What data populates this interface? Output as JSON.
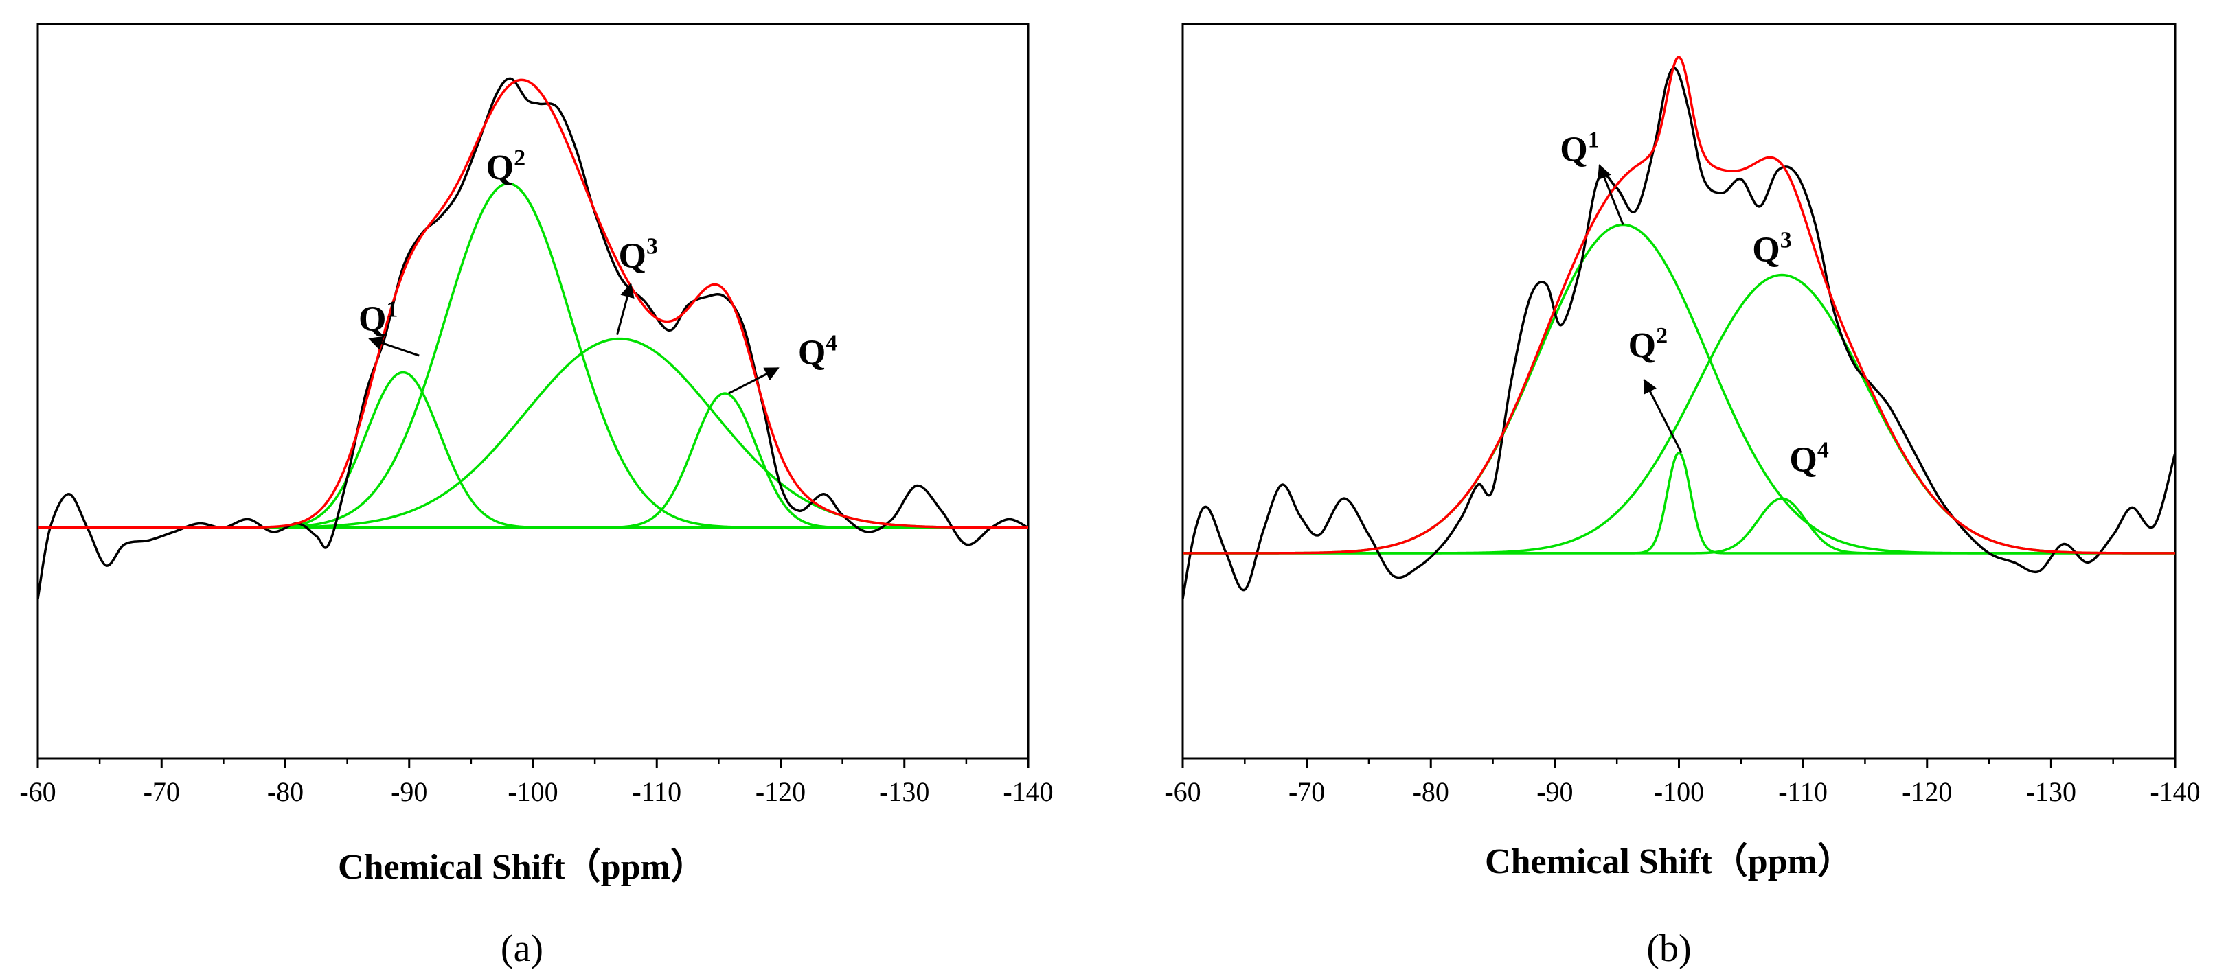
{
  "chart_data": [
    {
      "panel_label": "(a)",
      "type": "line",
      "xlabel": "Chemical Shift（ppm）",
      "ylabel": "",
      "xlim": [
        -60,
        -140
      ],
      "ylim": [
        -0.55,
        1.2
      ],
      "x_ticks": [
        -60,
        -70,
        -80,
        -90,
        -100,
        -110,
        -120,
        -130,
        -140
      ],
      "tick_labels": [
        "-60",
        "-70",
        "-80",
        "-90",
        "-100",
        "-110",
        "-120",
        "-130",
        "-140"
      ],
      "series_colors": {
        "experimental": "#000000",
        "fit": "#ff0000",
        "components": "#00e000"
      },
      "series": [
        {
          "name": "experimental",
          "color": "#000000",
          "x": [
            -60,
            -61,
            -62.5,
            -64,
            -65.5,
            -67,
            -69,
            -71,
            -73,
            -75,
            -77,
            -79,
            -81,
            -82.5,
            -83.5,
            -85,
            -86.5,
            -88,
            -89.5,
            -91,
            -92.5,
            -94,
            -95.5,
            -97,
            -98.2,
            -99.5,
            -100.5,
            -102,
            -103.5,
            -105,
            -107,
            -109,
            -111,
            -112.5,
            -114,
            -115.5,
            -117,
            -118.5,
            -120,
            -121.5,
            -123.5,
            -125,
            -127,
            -129,
            -131,
            -133,
            -135,
            -137,
            -138.5,
            -140
          ],
          "y": [
            -0.17,
            0.0,
            0.08,
            0.0,
            -0.09,
            -0.04,
            -0.03,
            -0.01,
            0.01,
            0.0,
            0.02,
            -0.01,
            0.01,
            -0.02,
            -0.04,
            0.12,
            0.32,
            0.45,
            0.62,
            0.7,
            0.74,
            0.8,
            0.91,
            1.03,
            1.07,
            1.02,
            1.01,
            1.0,
            0.9,
            0.75,
            0.6,
            0.54,
            0.47,
            0.53,
            0.55,
            0.55,
            0.48,
            0.3,
            0.1,
            0.04,
            0.08,
            0.03,
            -0.01,
            0.02,
            0.1,
            0.04,
            -0.04,
            0.0,
            0.02,
            0.0
          ]
        },
        {
          "name": "fit",
          "color": "#ff0000",
          "type": "gauss_sum"
        },
        {
          "name": "Q1",
          "color": "#00e000",
          "type": "gaussian",
          "center": -89.5,
          "amplitude": 0.37,
          "fwhm": 7.0
        },
        {
          "name": "Q2",
          "color": "#00e000",
          "type": "gaussian",
          "center": -98.0,
          "amplitude": 0.82,
          "fwhm": 12.0
        },
        {
          "name": "Q3",
          "color": "#00e000",
          "type": "gaussian",
          "center": -107.0,
          "amplitude": 0.45,
          "fwhm": 18.0
        },
        {
          "name": "Q4",
          "color": "#00e000",
          "type": "gaussian",
          "center": -115.5,
          "amplitude": 0.32,
          "fwhm": 6.0
        }
      ],
      "annotations": [
        {
          "label": "Q",
          "sup": "1",
          "text_x": -87.5,
          "text_y": 0.47,
          "arrow_from": [
            -90.8,
            0.41
          ],
          "arrow_to": [
            -86.8,
            0.45
          ]
        },
        {
          "label": "Q",
          "sup": "2",
          "text_x": -97.8,
          "text_y": 0.83,
          "arrow_from": null,
          "arrow_to": null
        },
        {
          "label": "Q",
          "sup": "3",
          "text_x": -108.5,
          "text_y": 0.62,
          "arrow_from": [
            -106.8,
            0.46
          ],
          "arrow_to": [
            -107.9,
            0.58
          ]
        },
        {
          "label": "Q",
          "sup": "4",
          "text_x": -123.0,
          "text_y": 0.39,
          "arrow_from": [
            -115.8,
            0.32
          ],
          "arrow_to": [
            -119.8,
            0.38
          ]
        }
      ]
    },
    {
      "panel_label": "(b)",
      "type": "line",
      "xlabel": "Chemical Shift（ppm）",
      "ylabel": "",
      "xlim": [
        -60,
        -140
      ],
      "ylim": [
        -0.45,
        1.16
      ],
      "x_ticks": [
        -60,
        -70,
        -80,
        -90,
        -100,
        -110,
        -120,
        -130,
        -140
      ],
      "tick_labels": [
        "-60",
        "-70",
        "-80",
        "-90",
        "-100",
        "-110",
        "-120",
        "-130",
        "-140"
      ],
      "series_colors": {
        "experimental": "#000000",
        "fit": "#ff0000",
        "components": "#00e000"
      },
      "series": [
        {
          "name": "experimental",
          "color": "#000000",
          "x": [
            -60,
            -61,
            -62,
            -63.5,
            -65,
            -66.5,
            -68,
            -69.5,
            -71,
            -73,
            -75,
            -77,
            -79,
            -81,
            -82.5,
            -83.8,
            -85,
            -86.5,
            -88,
            -89.3,
            -90.5,
            -92,
            -93.5,
            -95,
            -96.5,
            -98,
            -99,
            -99.8,
            -100.8,
            -102,
            -103.5,
            -105,
            -106.5,
            -108,
            -109.5,
            -111,
            -112.5,
            -114,
            -115.5,
            -117,
            -119,
            -121,
            -123,
            -125,
            -127,
            -129,
            -131,
            -133,
            -135,
            -136.5,
            -138.3,
            -140
          ],
          "y": [
            -0.1,
            0.05,
            0.1,
            0.0,
            -0.08,
            0.05,
            0.15,
            0.08,
            0.04,
            0.12,
            0.04,
            -0.05,
            -0.03,
            0.02,
            0.08,
            0.15,
            0.14,
            0.38,
            0.56,
            0.59,
            0.5,
            0.62,
            0.82,
            0.8,
            0.75,
            0.89,
            1.03,
            1.06,
            0.97,
            0.82,
            0.79,
            0.82,
            0.76,
            0.84,
            0.83,
            0.72,
            0.53,
            0.42,
            0.37,
            0.32,
            0.22,
            0.12,
            0.05,
            0.0,
            -0.02,
            -0.04,
            0.02,
            -0.02,
            0.04,
            0.1,
            0.06,
            0.22
          ]
        },
        {
          "name": "fit",
          "color": "#ff0000",
          "type": "gauss_sum"
        },
        {
          "name": "Q1",
          "color": "#00e000",
          "type": "gaussian",
          "center": -95.5,
          "amplitude": 0.72,
          "fwhm": 16.0
        },
        {
          "name": "Q2",
          "color": "#00e000",
          "type": "gaussian",
          "center": -100.0,
          "amplitude": 0.22,
          "fwhm": 2.2
        },
        {
          "name": "Q3",
          "color": "#00e000",
          "type": "gaussian",
          "center": -108.3,
          "amplitude": 0.61,
          "fwhm": 16.0
        },
        {
          "name": "Q4",
          "color": "#00e000",
          "type": "gaussian",
          "center": -108.3,
          "amplitude": 0.12,
          "fwhm": 4.5
        }
      ],
      "annotations": [
        {
          "label": "Q",
          "sup": "1",
          "text_x": -92.0,
          "text_y": 0.86,
          "arrow_from": [
            -95.5,
            0.72
          ],
          "arrow_to": [
            -93.6,
            0.85
          ]
        },
        {
          "label": "Q",
          "sup": "2",
          "text_x": -97.5,
          "text_y": 0.43,
          "arrow_from": [
            -100.2,
            0.22
          ],
          "arrow_to": [
            -97.2,
            0.38
          ]
        },
        {
          "label": "Q",
          "sup": "3",
          "text_x": -107.5,
          "text_y": 0.64,
          "arrow_from": null,
          "arrow_to": null
        },
        {
          "label": "Q",
          "sup": "4",
          "text_x": -110.5,
          "text_y": 0.18,
          "arrow_from": null,
          "arrow_to": null
        }
      ]
    }
  ]
}
